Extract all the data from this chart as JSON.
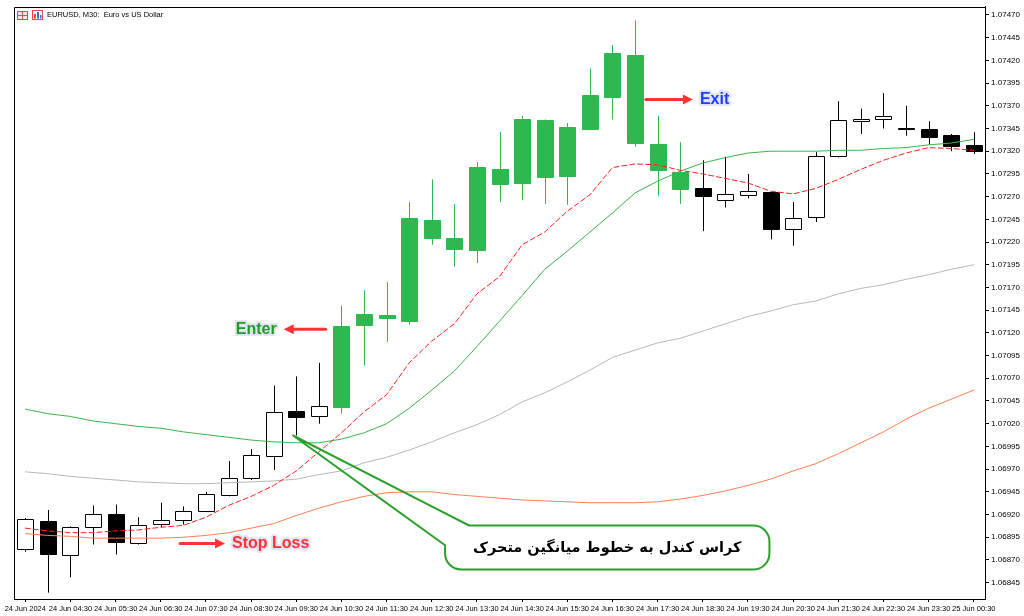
{
  "chart_data": {
    "type": "candlestick",
    "title": "EURUSD, M30:  Euro vs US Dollar",
    "x": [
      "2024-06-24T03:30",
      "2024-06-24T04:00",
      "2024-06-24T04:30",
      "2024-06-24T05:00",
      "2024-06-24T05:30",
      "2024-06-24T06:00",
      "2024-06-24T06:30",
      "2024-06-24T07:00",
      "2024-06-24T07:30",
      "2024-06-24T08:00",
      "2024-06-24T08:30",
      "2024-06-24T09:00",
      "2024-06-24T09:30",
      "2024-06-24T10:00",
      "2024-06-24T10:30",
      "2024-06-24T11:00",
      "2024-06-24T11:30",
      "2024-06-24T12:00",
      "2024-06-24T12:30",
      "2024-06-24T13:00",
      "2024-06-24T13:30",
      "2024-06-24T14:00",
      "2024-06-24T14:30",
      "2024-06-24T15:00",
      "2024-06-24T15:30",
      "2024-06-24T16:00",
      "2024-06-24T16:30",
      "2024-06-24T17:00",
      "2024-06-24T17:30",
      "2024-06-24T18:00",
      "2024-06-24T18:30",
      "2024-06-24T19:00",
      "2024-06-24T19:30",
      "2024-06-24T20:00",
      "2024-06-24T20:30",
      "2024-06-24T21:00",
      "2024-06-24T21:30",
      "2024-06-24T22:00",
      "2024-06-24T22:30",
      "2024-06-24T23:00",
      "2024-06-24T23:30",
      "2024-06-25T00:00",
      "2024-06-25T00:30"
    ],
    "ohlc": [
      [
        1.06882,
        1.06916,
        1.06879,
        1.06915
      ],
      [
        1.06913,
        1.06925,
        1.06834,
        1.06876
      ],
      [
        1.06875,
        1.06907,
        1.06851,
        1.06906
      ],
      [
        1.06906,
        1.0693,
        1.06887,
        1.06921
      ],
      [
        1.06921,
        1.06931,
        1.06876,
        1.0689
      ],
      [
        1.06889,
        1.06917,
        1.06887,
        1.06909
      ],
      [
        1.0691,
        1.06933,
        1.06906,
        1.06914
      ],
      [
        1.06914,
        1.06929,
        1.06909,
        1.06924
      ],
      [
        1.06924,
        1.06945,
        1.06923,
        1.06943
      ],
      [
        1.06941,
        1.06979,
        1.0694,
        1.0696
      ],
      [
        1.0696,
        1.06992,
        1.06958,
        1.06985
      ],
      [
        1.06984,
        1.07062,
        1.06969,
        1.07033
      ],
      [
        1.07034,
        1.07072,
        1.07007,
        1.07027
      ],
      [
        1.07029,
        1.07087,
        1.0702,
        1.07039
      ],
      [
        1.07038,
        1.0715,
        1.07031,
        1.07128
      ],
      [
        1.07129,
        1.07167,
        1.07084,
        1.07141
      ],
      [
        1.0714,
        1.07176,
        1.0711,
        1.07136
      ],
      [
        1.07133,
        1.07264,
        1.07129,
        1.07246
      ],
      [
        1.07244,
        1.07289,
        1.07217,
        1.07224
      ],
      [
        1.07224,
        1.07262,
        1.07193,
        1.07212
      ],
      [
        1.07211,
        1.07308,
        1.07197,
        1.07303
      ],
      [
        1.073,
        1.07341,
        1.07264,
        1.07284
      ],
      [
        1.07285,
        1.07359,
        1.07266,
        1.07356
      ],
      [
        1.07354,
        1.07355,
        1.07262,
        1.07292
      ],
      [
        1.07293,
        1.07351,
        1.07261,
        1.07347
      ],
      [
        1.07344,
        1.07411,
        1.07344,
        1.07382
      ],
      [
        1.0738,
        1.07437,
        1.07355,
        1.07428
      ],
      [
        1.07426,
        1.07464,
        1.07325,
        1.07329
      ],
      [
        1.07328,
        1.07359,
        1.07271,
        1.07299
      ],
      [
        1.07297,
        1.0733,
        1.07262,
        1.07278
      ],
      [
        1.07279,
        1.0731,
        1.07232,
        1.07271
      ],
      [
        1.07266,
        1.07314,
        1.07258,
        1.07273
      ],
      [
        1.07272,
        1.07295,
        1.07268,
        1.07276
      ],
      [
        1.07275,
        1.07275,
        1.07223,
        1.07234
      ],
      [
        1.07234,
        1.07264,
        1.07216,
        1.07247
      ],
      [
        1.07248,
        1.07319,
        1.07242,
        1.07315
      ],
      [
        1.07315,
        1.07375,
        1.07313,
        1.07354
      ],
      [
        1.07353,
        1.07367,
        1.07339,
        1.07356
      ],
      [
        1.07356,
        1.07384,
        1.07345,
        1.07359
      ],
      [
        1.07346,
        1.0737,
        1.07337,
        1.07344
      ],
      [
        1.07345,
        1.07353,
        1.07327,
        1.07336
      ],
      [
        1.07338,
        1.07339,
        1.0732,
        1.07326
      ],
      [
        1.07327,
        1.07341,
        1.07317,
        1.0732
      ]
    ],
    "colors": [
      "#ffffff",
      "#000000",
      "#ffffff",
      "#ffffff",
      "#000000",
      "#ffffff",
      "#ffffff",
      "#ffffff",
      "#ffffff",
      "#ffffff",
      "#ffffff",
      "#ffffff",
      "#000000",
      "#ffffff",
      "#2fb84f",
      "#2fb84f",
      "#2fb84f",
      "#2fb84f",
      "#2fb84f",
      "#2fb84f",
      "#2fb84f",
      "#2fb84f",
      "#2fb84f",
      "#2fb84f",
      "#2fb84f",
      "#2fb84f",
      "#2fb84f",
      "#2fb84f",
      "#2fb84f",
      "#2fb84f",
      "#000000",
      "#ffffff",
      "#ffffff",
      "#000000",
      "#ffffff",
      "#ffffff",
      "#ffffff",
      "#ffffff",
      "#ffffff",
      "#000000",
      "#000000",
      "#000000",
      "#000000"
    ],
    "series": [
      {
        "type": "line",
        "color": "#ff2020",
        "line_style": "dashed",
        "values": [
          1.06905,
          1.06902,
          1.069,
          1.069,
          1.06902,
          1.06903,
          1.06906,
          1.06908,
          1.06917,
          1.0693,
          1.0694,
          1.06952,
          1.06968,
          1.06989,
          1.0701,
          1.07033,
          1.07052,
          1.07087,
          1.07111,
          1.0713,
          1.07163,
          1.07182,
          1.07217,
          1.07231,
          1.07254,
          1.07272,
          1.07302,
          1.07306,
          1.07305,
          1.07299,
          1.07295,
          1.0729,
          1.07285,
          1.07276,
          1.07273,
          1.07279,
          1.07289,
          1.073,
          1.0731,
          1.07318,
          1.07324,
          1.07323,
          1.07321
        ]
      },
      {
        "type": "line",
        "color": "#3cb44b",
        "values": [
          1.07036,
          1.07031,
          1.07028,
          1.07023,
          1.0702,
          1.07017,
          1.07015,
          1.07011,
          1.07008,
          1.07005,
          1.07002,
          1.07,
          1.06999,
          1.06999,
          1.07003,
          1.0701,
          1.0702,
          1.07037,
          1.07057,
          1.07078,
          1.07105,
          1.07133,
          1.07161,
          1.0719,
          1.0721,
          1.07231,
          1.07252,
          1.07274,
          1.07287,
          1.07298,
          1.07307,
          1.07313,
          1.07318,
          1.0732,
          1.0732,
          1.0732,
          1.07321,
          1.07321,
          1.07323,
          1.07324,
          1.07327,
          1.07329,
          1.07333
        ]
      },
      {
        "type": "line",
        "color": "#b8b8b8",
        "values": [
          1.06967,
          1.06965,
          1.06962,
          1.0696,
          1.06958,
          1.06956,
          1.06955,
          1.06954,
          1.06954,
          1.06955,
          1.06956,
          1.06957,
          1.06959,
          1.06964,
          1.06968,
          1.06977,
          1.06983,
          1.06991,
          1.07,
          1.0701,
          1.07019,
          1.0703,
          1.07044,
          1.07054,
          1.07066,
          1.07079,
          1.07093,
          1.07101,
          1.07109,
          1.07114,
          1.07122,
          1.0713,
          1.07138,
          1.07144,
          1.07151,
          1.07155,
          1.07163,
          1.07169,
          1.07173,
          1.07179,
          1.07184,
          1.0719,
          1.07195
        ]
      },
      {
        "type": "line",
        "color": "#ff7f50",
        "values": [
          1.06899,
          1.06897,
          1.06896,
          1.06894,
          1.06894,
          1.06894,
          1.06894,
          1.06895,
          1.06897,
          1.069,
          1.06905,
          1.0691,
          1.06919,
          1.06927,
          1.06934,
          1.0694,
          1.06944,
          1.06945,
          1.06945,
          1.06942,
          1.0694,
          1.06938,
          1.06936,
          1.06935,
          1.06934,
          1.06933,
          1.06933,
          1.06933,
          1.06934,
          1.06937,
          1.06941,
          1.06946,
          1.06952,
          1.06959,
          1.06968,
          1.06976,
          1.06987,
          1.06999,
          1.07011,
          1.07025,
          1.07037,
          1.07047,
          1.07057
        ]
      }
    ],
    "xlim": [
      "2024-06-24T03:15",
      "2024-06-25T00:45"
    ],
    "xticks": [
      {
        "value": "2024-06-24T03:30",
        "label": "24 Jun 2024"
      },
      {
        "value": "2024-06-24T04:30",
        "label": "24 Jun 04:30"
      },
      {
        "value": "2024-06-24T05:30",
        "label": "24 Jun 05:30"
      },
      {
        "value": "2024-06-24T06:30",
        "label": "24 Jun 06:30"
      },
      {
        "value": "2024-06-24T07:30",
        "label": "24 Jun 07:30"
      },
      {
        "value": "2024-06-24T08:30",
        "label": "24 Jun 08:30"
      },
      {
        "value": "2024-06-24T09:30",
        "label": "24 Jun 09:30"
      },
      {
        "value": "2024-06-24T10:30",
        "label": "24 Jun 10:30"
      },
      {
        "value": "2024-06-24T11:30",
        "label": "24 Jun 11:30"
      },
      {
        "value": "2024-06-24T12:30",
        "label": "24 Jun 12:30"
      },
      {
        "value": "2024-06-24T13:30",
        "label": "24 Jun 13:30"
      },
      {
        "value": "2024-06-24T14:30",
        "label": "24 Jun 14:30"
      },
      {
        "value": "2024-06-24T15:30",
        "label": "24 Jun 15:30"
      },
      {
        "value": "2024-06-24T16:30",
        "label": "24 Jun 16:30"
      },
      {
        "value": "2024-06-24T17:30",
        "label": "24 Jun 17:30"
      },
      {
        "value": "2024-06-24T18:30",
        "label": "24 Jun 18:30"
      },
      {
        "value": "2024-06-24T19:30",
        "label": "24 Jun 19:30"
      },
      {
        "value": "2024-06-24T20:30",
        "label": "24 Jun 20:30"
      },
      {
        "value": "2024-06-24T21:30",
        "label": "24 Jun 21:30"
      },
      {
        "value": "2024-06-24T22:30",
        "label": "24 Jun 22:30"
      },
      {
        "value": "2024-06-24T23:30",
        "label": "24 Jun 23:30"
      },
      {
        "value": "2024-06-25T00:30",
        "label": "25 Jun 00:30"
      }
    ],
    "ylim": [
      1.06827,
      1.07479
    ],
    "yticks": [
      1.06845,
      {
        "value": 1.0687,
        "label": "1.06870"
      },
      1.06895,
      {
        "value": 1.0692,
        "label": "1.06920"
      },
      1.06945,
      {
        "value": 1.0697,
        "label": "1.06970"
      },
      1.06995,
      {
        "value": 1.0702,
        "label": "1.07020"
      },
      1.07045,
      {
        "value": 1.0707,
        "label": "1.07070"
      },
      1.07095,
      {
        "value": 1.0712,
        "label": "1.07120"
      },
      1.07145,
      {
        "value": 1.0717,
        "label": "1.07170"
      },
      1.07195,
      {
        "value": 1.0722,
        "label": "1.07220"
      },
      1.07245,
      {
        "value": 1.0727,
        "label": "1.07270"
      },
      1.07295,
      {
        "value": 1.0732,
        "label": "1.07320"
      },
      1.07345,
      {
        "value": 1.0737,
        "label": "1.07370"
      },
      1.07395,
      {
        "value": 1.0742,
        "label": "1.07420"
      },
      1.07445,
      {
        "value": 1.0747,
        "label": "1.07470"
      }
    ],
    "annotations": [
      "Enter",
      "Exit",
      "Stop Loss",
      "کراس کندل به خطوط میانگین متحرک"
    ]
  }
}
